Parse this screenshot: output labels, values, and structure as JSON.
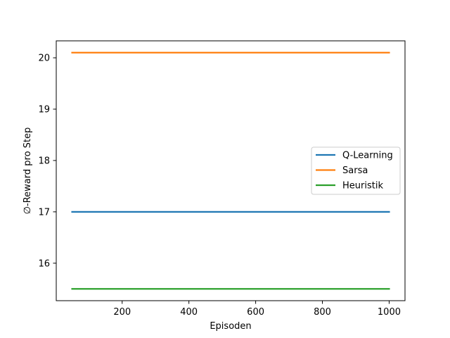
{
  "chart_data": {
    "type": "line",
    "title": "",
    "xlabel": "Episoden",
    "ylabel": "∅-Reward pro Step",
    "xlim": [
      2.5,
      1047.5
    ],
    "ylim": [
      15.27,
      20.33
    ],
    "xticks": [
      200,
      400,
      600,
      800,
      1000
    ],
    "yticks": [
      16,
      17,
      18,
      19,
      20
    ],
    "grid": false,
    "legend_position": "center-right",
    "series": [
      {
        "name": "Q-Learning",
        "color": "#1f77b4",
        "x": [
          50,
          1000
        ],
        "values": [
          17.0,
          17.0
        ]
      },
      {
        "name": "Sarsa",
        "color": "#ff7f0e",
        "x": [
          50,
          1000
        ],
        "values": [
          20.1,
          20.1
        ]
      },
      {
        "name": "Heuristik",
        "color": "#2ca02c",
        "x": [
          50,
          1000
        ],
        "values": [
          15.5,
          15.5
        ]
      }
    ]
  }
}
